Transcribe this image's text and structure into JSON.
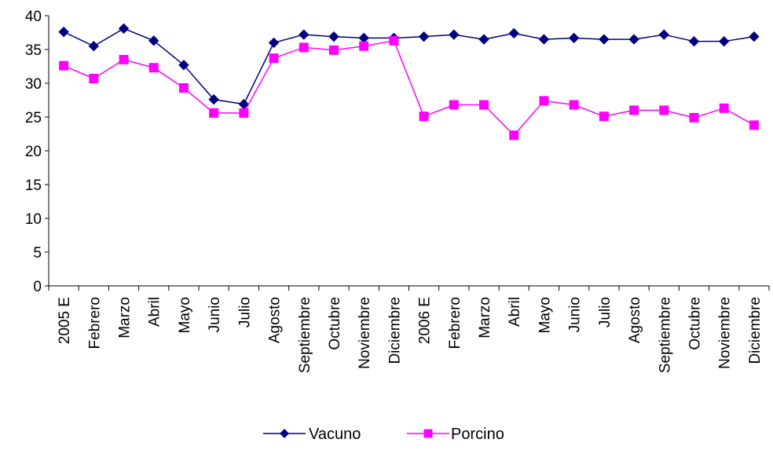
{
  "chart_data": {
    "type": "line",
    "title": "",
    "xlabel": "",
    "ylabel": "",
    "categories": [
      "2005 E",
      "Febrero",
      "Marzo",
      "Abril",
      "Mayo",
      "Junio",
      "Julio",
      "Agosto",
      "Septiembre",
      "Octubre",
      "Noviembre",
      "Diciembre",
      "2006 E",
      "Febrero",
      "Marzo",
      "Abril",
      "Mayo",
      "Junio",
      "Julio",
      "Agosto",
      "Septiembre",
      "Octubre",
      "Noviembre",
      "Diciembre"
    ],
    "ylim": [
      0,
      40
    ],
    "yticks": [
      0,
      5,
      10,
      15,
      20,
      25,
      30,
      35,
      40
    ],
    "grid": false,
    "legend_position": "bottom",
    "series": [
      {
        "name": "Vacuno",
        "color": "#000080",
        "marker": "diamond",
        "values": [
          37.6,
          35.5,
          38.1,
          36.3,
          32.7,
          27.6,
          26.9,
          36.0,
          37.2,
          36.9,
          36.7,
          36.7,
          36.9,
          37.2,
          36.5,
          37.4,
          36.5,
          36.7,
          36.5,
          36.5,
          37.2,
          36.2,
          36.2,
          36.9
        ]
      },
      {
        "name": "Porcino",
        "color": "#FF00FF",
        "marker": "square",
        "values": [
          32.6,
          30.7,
          33.5,
          32.3,
          29.3,
          25.6,
          25.6,
          33.7,
          35.3,
          34.9,
          35.5,
          36.3,
          25.1,
          26.8,
          26.8,
          22.3,
          27.4,
          26.8,
          25.1,
          26.0,
          26.0,
          24.9,
          26.3,
          23.8
        ]
      }
    ]
  }
}
